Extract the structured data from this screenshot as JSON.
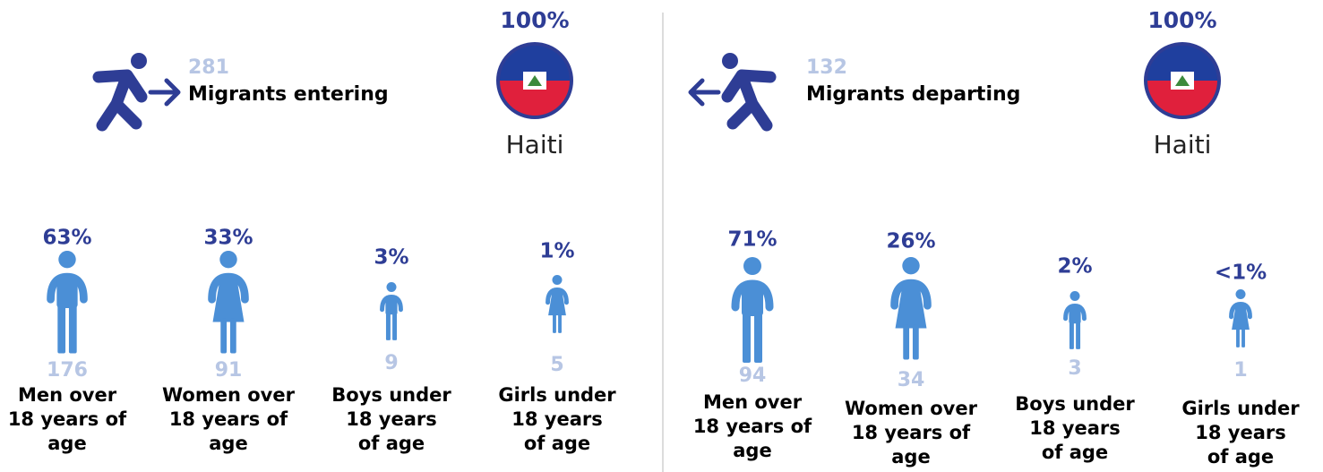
{
  "panels": [
    {
      "count": "281",
      "label": "Migrants entering",
      "country_share": "100%",
      "country": "Haiti",
      "groups": [
        {
          "share": "63%",
          "count": "176",
          "label": [
            "Men over",
            "18 years of",
            "age"
          ]
        },
        {
          "share": "33%",
          "count": "91",
          "label": [
            "Women over",
            "18 years of",
            "age"
          ]
        },
        {
          "share": "3%",
          "count": "9",
          "label": [
            "Boys under",
            "18 years",
            "of age"
          ]
        },
        {
          "share": "1%",
          "count": "5",
          "label": [
            "Girls under",
            "18 years",
            "of age"
          ]
        }
      ]
    },
    {
      "count": "132",
      "label": "Migrants departing",
      "country_share": "100%",
      "country": "Haiti",
      "groups": [
        {
          "share": "71%",
          "count": "94",
          "label": [
            "Men over",
            "18 years of",
            "age"
          ]
        },
        {
          "share": "26%",
          "count": "34",
          "label": [
            "Women over",
            "18 years of",
            "age"
          ]
        },
        {
          "share": "2%",
          "count": "3",
          "label": [
            "Boys under",
            "18 years",
            "of age"
          ]
        },
        {
          "share": "<1%",
          "count": "1",
          "label": [
            "Girls under",
            "18 years",
            "of age"
          ]
        }
      ]
    }
  ]
}
